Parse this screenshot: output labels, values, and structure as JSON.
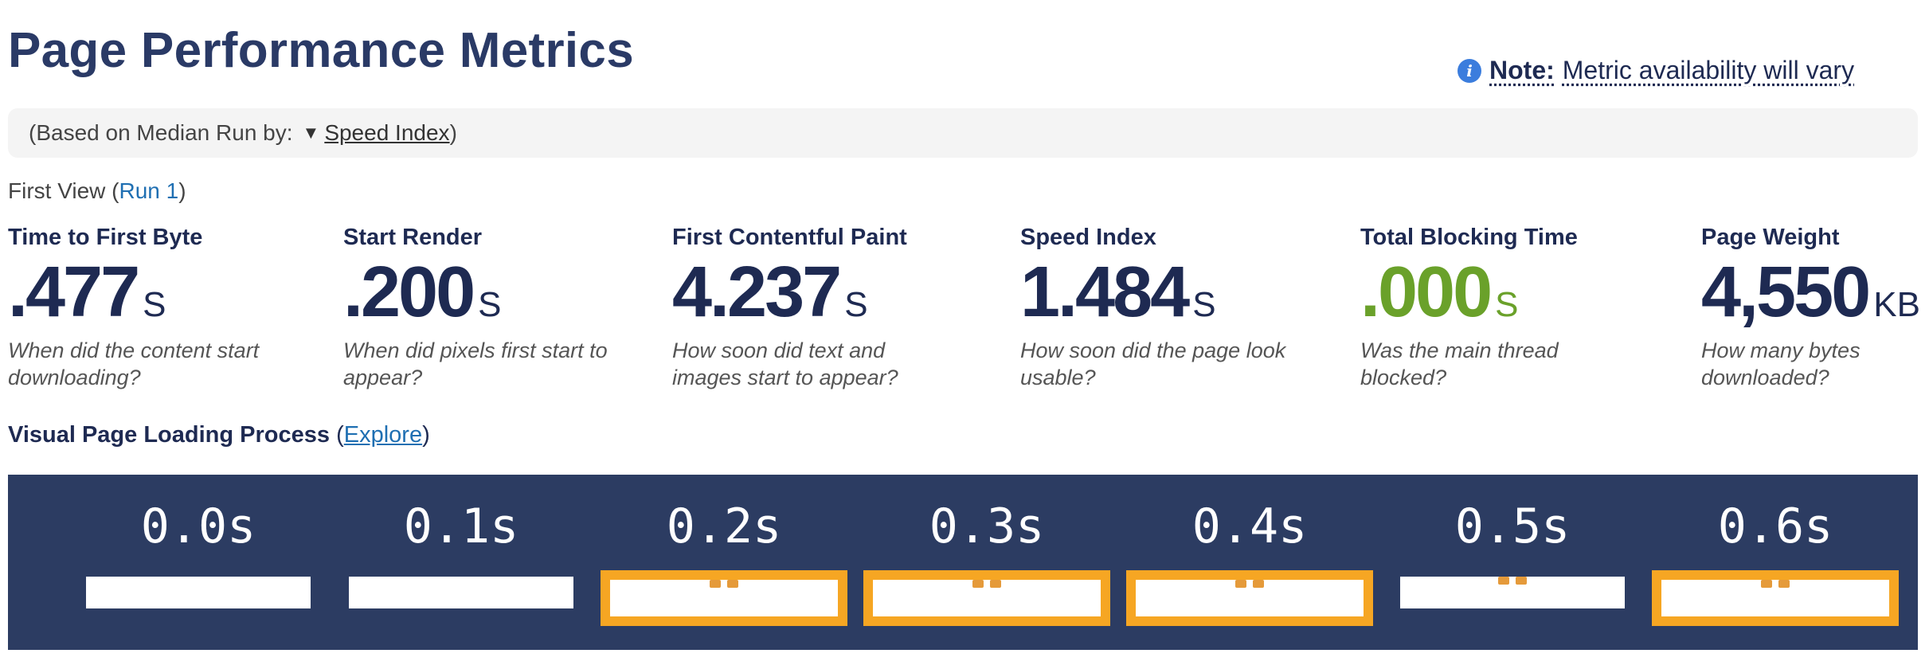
{
  "title": "Page Performance Metrics",
  "note": {
    "label": "Note:",
    "text": "Metric availability will vary",
    "icon": "info-icon"
  },
  "median": {
    "prefix": "(Based on Median Run by:",
    "selected": "Speed Index",
    "suffix": ")"
  },
  "first_view": {
    "label": "First View (",
    "run_link": "Run 1",
    "close": ")"
  },
  "metrics": [
    {
      "label": "Time to First Byte",
      "value": ".477",
      "unit": "S",
      "desc": "When did the content start downloading?"
    },
    {
      "label": "Start Render",
      "value": ".200",
      "unit": "S",
      "desc": "When did pixels first start to appear?"
    },
    {
      "label": "First Contentful Paint",
      "value": "4.237",
      "unit": "S",
      "desc": "How soon did text and images start to appear?"
    },
    {
      "label": "Speed Index",
      "value": "1.484",
      "unit": "S",
      "desc": "How soon did the page look usable?"
    },
    {
      "label": "Total Blocking Time",
      "value": ".000",
      "unit": "S",
      "desc": "Was the main thread blocked?",
      "color": "#6aa12a"
    },
    {
      "label": "Page Weight",
      "value": "4,550",
      "unit": "KB",
      "desc": "How many bytes downloaded?"
    }
  ],
  "visual": {
    "label": "Visual Page Loading Process",
    "open": "(",
    "link": "Explore",
    "close": ")"
  },
  "filmstrip": [
    {
      "time": "0.0s",
      "changed": false
    },
    {
      "time": "0.1s",
      "changed": false
    },
    {
      "time": "0.2s",
      "changed": true
    },
    {
      "time": "0.3s",
      "changed": true
    },
    {
      "time": "0.4s",
      "changed": true
    },
    {
      "time": "0.5s",
      "changed": false
    },
    {
      "time": "0.6s",
      "changed": true
    }
  ],
  "colors": {
    "accent": "#2a3a66",
    "link": "#1f6fb2",
    "good": "#6aa12a",
    "filmstrip_bg": "#2c3c62",
    "changed_frame": "#f6a623"
  }
}
